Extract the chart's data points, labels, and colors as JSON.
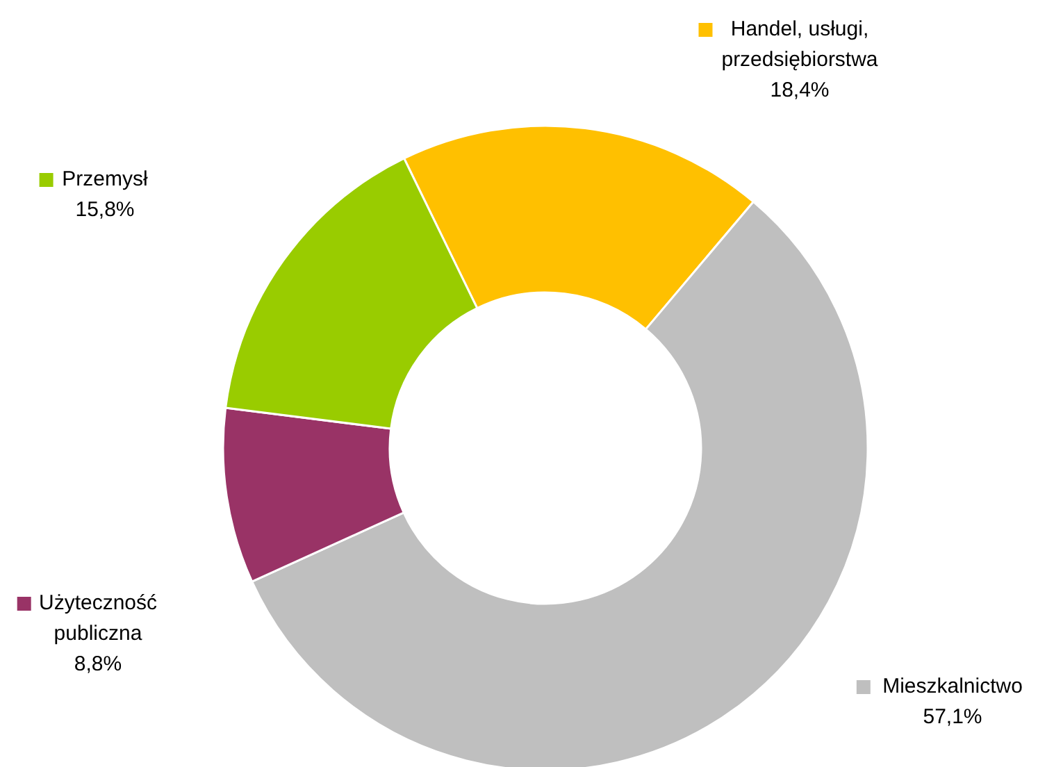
{
  "chart_data": {
    "type": "donut",
    "categories": [
      "Handel, usługi, przedsiębiorstwa",
      "Mieszkalnictwo",
      "Użyteczność publiczna",
      "Przemysł"
    ],
    "values": [
      18.4,
      57.1,
      8.8,
      15.8
    ],
    "colors": [
      "#ffc000",
      "#bfbfbf",
      "#993366",
      "#99cc00"
    ],
    "value_labels": [
      "18,4%",
      "57,1%",
      "8,8%",
      "15,8%"
    ],
    "legend": "top right"
  }
}
